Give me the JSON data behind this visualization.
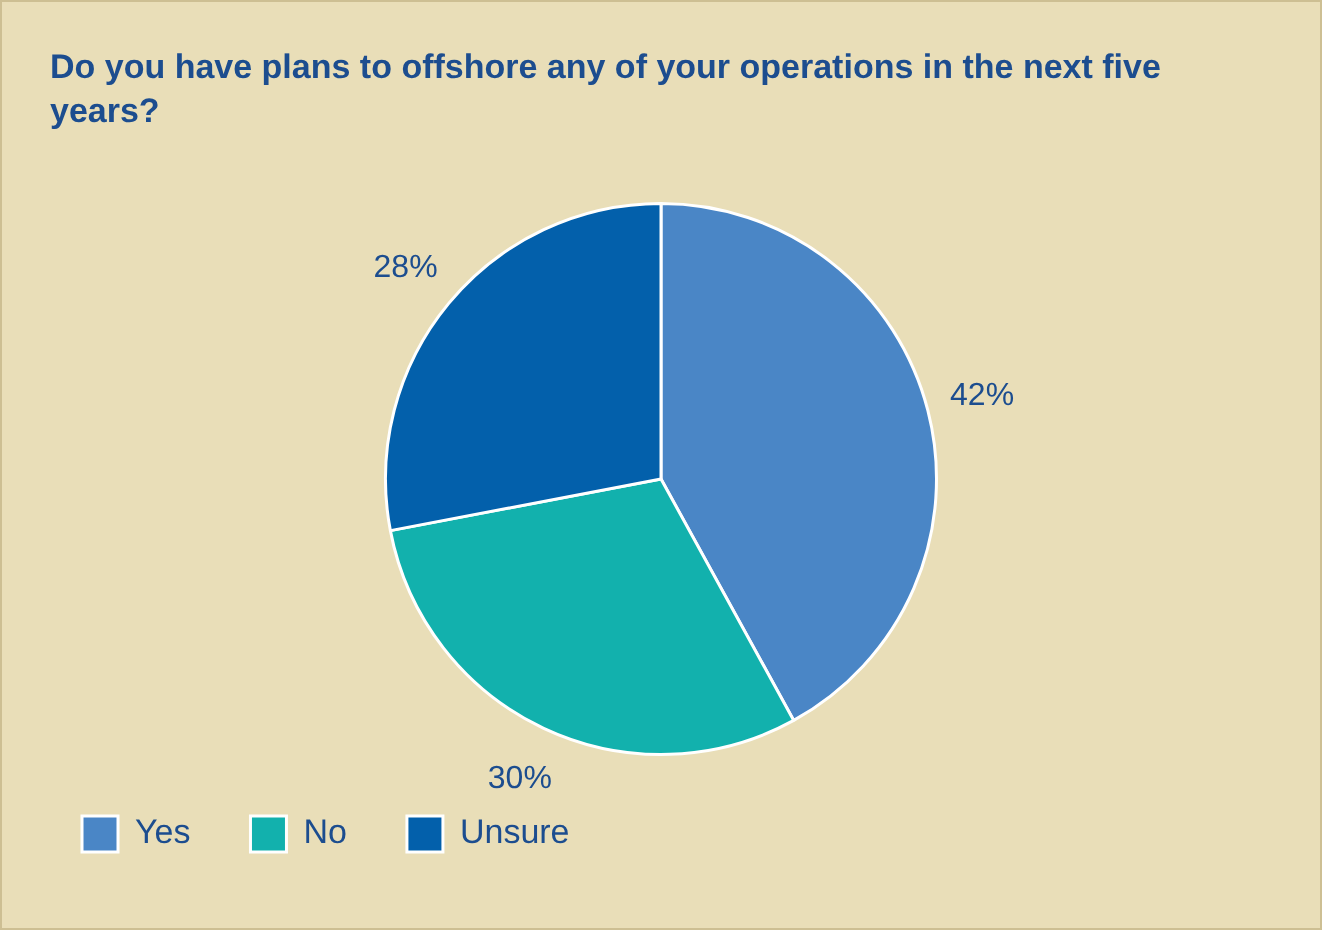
{
  "chart_data": {
    "type": "pie",
    "title": "Do you have plans to offshore any of your operations in the next five years?",
    "categories": [
      "Yes",
      "No",
      "Unsure"
    ],
    "values": [
      42,
      30,
      28
    ],
    "value_labels": [
      "42%",
      "30%",
      "28%"
    ],
    "colors": [
      "#4a86c6",
      "#12b1ad",
      "#0360ab"
    ],
    "legend": "bottom left"
  }
}
